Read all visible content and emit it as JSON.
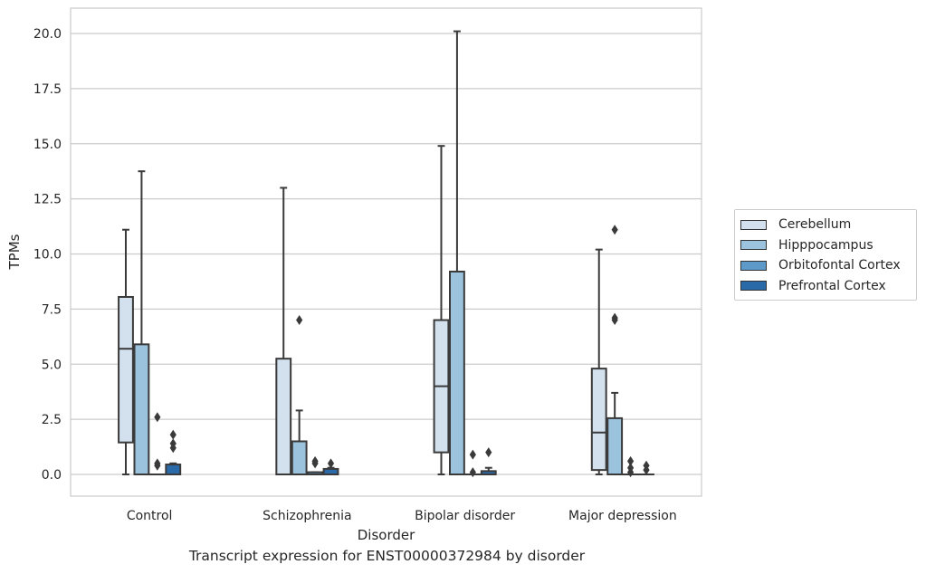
{
  "chart_data": {
    "type": "box",
    "title": "Transcript expression for ENST00000372984 by disorder",
    "xlabel": "Disorder",
    "ylabel": "TPMs",
    "ylim": [
      -1.0,
      21.2
    ],
    "yticks": [
      "0.0",
      "2.5",
      "5.0",
      "7.5",
      "10.0",
      "12.5",
      "15.0",
      "17.5",
      "20.0"
    ],
    "categories": [
      "Control",
      "Schizophrenia",
      "Bipolar disorder",
      "Major depression"
    ],
    "grid": "horizontal",
    "legend_position": "right",
    "series": [
      {
        "name": "Cerebellum",
        "color": "#d3e1ef",
        "boxes": [
          {
            "q1": 1.45,
            "median": 5.7,
            "q3": 8.05,
            "whisker_low": 0.0,
            "whisker_high": 11.1,
            "outliers": []
          },
          {
            "q1": 0.0,
            "median": 0.0,
            "q3": 5.25,
            "whisker_low": 0.0,
            "whisker_high": 13.0,
            "outliers": []
          },
          {
            "q1": 1.0,
            "median": 4.0,
            "q3": 7.0,
            "whisker_low": 0.0,
            "whisker_high": 14.9,
            "outliers": []
          },
          {
            "q1": 0.2,
            "median": 1.9,
            "q3": 4.8,
            "whisker_low": 0.0,
            "whisker_high": 10.2,
            "outliers": []
          }
        ]
      },
      {
        "name": "Hipppocampus",
        "color": "#9cc3dd",
        "boxes": [
          {
            "q1": 0.0,
            "median": 0.0,
            "q3": 5.9,
            "whisker_low": 0.0,
            "whisker_high": 13.75,
            "outliers": []
          },
          {
            "q1": 0.0,
            "median": 0.0,
            "q3": 1.5,
            "whisker_low": 0.0,
            "whisker_high": 2.9,
            "outliers": [
              7.0
            ]
          },
          {
            "q1": 0.0,
            "median": 0.0,
            "q3": 9.2,
            "whisker_low": 0.0,
            "whisker_high": 20.1,
            "outliers": []
          },
          {
            "q1": 0.0,
            "median": 0.0,
            "q3": 2.55,
            "whisker_low": 0.0,
            "whisker_high": 3.7,
            "outliers": [
              7.0,
              7.1,
              11.1
            ]
          }
        ]
      },
      {
        "name": "Orbitofontal Cortex",
        "color": "#5d9ac9",
        "boxes": [
          {
            "q1": 0.0,
            "median": 0.0,
            "q3": 0.0,
            "whisker_low": 0.0,
            "whisker_high": 0.0,
            "outliers": [
              0.4,
              0.5,
              2.6
            ]
          },
          {
            "q1": 0.0,
            "median": 0.0,
            "q3": 0.1,
            "whisker_low": 0.0,
            "whisker_high": 0.1,
            "outliers": [
              0.5,
              0.6
            ]
          },
          {
            "q1": 0.0,
            "median": 0.0,
            "q3": 0.0,
            "whisker_low": 0.0,
            "whisker_high": 0.0,
            "outliers": [
              0.1,
              0.9
            ]
          },
          {
            "q1": 0.0,
            "median": 0.0,
            "q3": 0.0,
            "whisker_low": 0.0,
            "whisker_high": 0.0,
            "outliers": [
              0.1,
              0.3,
              0.6
            ]
          }
        ]
      },
      {
        "name": "Prefrontal Cortex",
        "color": "#2b6aa8",
        "boxes": [
          {
            "q1": 0.0,
            "median": 0.0,
            "q3": 0.45,
            "whisker_low": 0.0,
            "whisker_high": 0.5,
            "outliers": [
              1.2,
              1.4,
              1.8
            ]
          },
          {
            "q1": 0.0,
            "median": 0.0,
            "q3": 0.25,
            "whisker_low": 0.0,
            "whisker_high": 0.3,
            "outliers": [
              0.5
            ]
          },
          {
            "q1": 0.0,
            "median": 0.0,
            "q3": 0.15,
            "whisker_low": 0.0,
            "whisker_high": 0.3,
            "outliers": [
              1.0
            ]
          },
          {
            "q1": 0.0,
            "median": 0.0,
            "q3": 0.0,
            "whisker_low": 0.0,
            "whisker_high": 0.0,
            "outliers": [
              0.2,
              0.4
            ]
          }
        ]
      }
    ]
  }
}
